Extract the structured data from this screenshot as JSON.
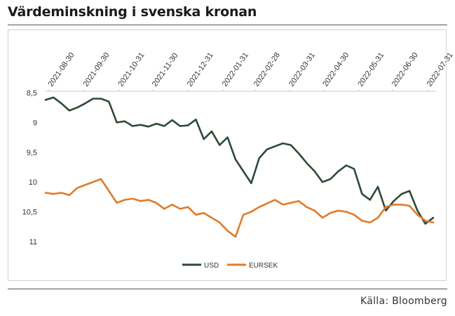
{
  "title": "Värdeminskning i svenska kronan",
  "source": "Källa: Bloomberg",
  "colors": {
    "usd": "#2e4a35",
    "eursek": "#e07b2a"
  },
  "chart_data": {
    "type": "line",
    "y_inverted": true,
    "ylim": [
      8.5,
      11
    ],
    "y_ticks": [
      8.5,
      9,
      9.5,
      10,
      10.5,
      11
    ],
    "y_tick_labels": [
      "8,5",
      "9",
      "9,5",
      "10",
      "10,5",
      "11"
    ],
    "x_tick_labels": [
      "2021-08-30",
      "2021-09-30",
      "2021-10-31",
      "2021-11-30",
      "2021-12-31",
      "2022-01-31",
      "2022-02-28",
      "2022-03-31",
      "2022-04-30",
      "2022-05-31",
      "2022-06-30",
      "2022-07-31"
    ],
    "x": [
      "2021-08-27",
      "2021-09-03",
      "2021-09-10",
      "2021-09-17",
      "2021-09-24",
      "2021-10-01",
      "2021-10-08",
      "2021-10-15",
      "2021-10-22",
      "2021-10-29",
      "2021-11-05",
      "2021-11-12",
      "2021-11-19",
      "2021-11-26",
      "2021-12-03",
      "2021-12-10",
      "2021-12-17",
      "2021-12-24",
      "2021-12-31",
      "2022-01-07",
      "2022-01-14",
      "2022-01-21",
      "2022-01-28",
      "2022-02-04",
      "2022-02-11",
      "2022-02-18",
      "2022-02-25",
      "2022-03-04",
      "2022-03-11",
      "2022-03-18",
      "2022-03-25",
      "2022-04-01",
      "2022-04-08",
      "2022-04-15",
      "2022-04-22",
      "2022-04-29",
      "2022-05-06",
      "2022-05-13",
      "2022-05-20",
      "2022-05-27",
      "2022-06-03",
      "2022-06-10",
      "2022-06-17",
      "2022-06-24",
      "2022-07-01",
      "2022-07-08",
      "2022-07-15",
      "2022-07-22",
      "2022-07-29",
      "2022-08-05"
    ],
    "series": [
      {
        "name": "USD",
        "values": [
          8.62,
          8.58,
          8.68,
          8.8,
          8.75,
          8.68,
          8.6,
          8.6,
          8.65,
          9.0,
          8.98,
          9.06,
          9.04,
          9.07,
          9.02,
          9.06,
          8.96,
          9.06,
          9.05,
          8.95,
          9.28,
          9.15,
          9.38,
          9.25,
          9.62,
          9.82,
          10.02,
          9.6,
          9.45,
          9.4,
          9.35,
          9.38,
          9.52,
          9.68,
          9.82,
          10.0,
          9.95,
          9.82,
          9.72,
          9.78,
          10.2,
          10.3,
          10.08,
          10.48,
          10.32,
          10.2,
          10.15,
          10.48,
          10.7,
          10.6
        ]
      },
      {
        "name": "EURSEK",
        "values": [
          10.18,
          10.2,
          10.18,
          10.22,
          10.1,
          10.05,
          10.0,
          9.95,
          10.15,
          10.35,
          10.3,
          10.28,
          10.32,
          10.3,
          10.35,
          10.45,
          10.38,
          10.45,
          10.42,
          10.55,
          10.52,
          10.6,
          10.68,
          10.82,
          10.92,
          10.55,
          10.5,
          10.42,
          10.36,
          10.3,
          10.38,
          10.35,
          10.32,
          10.42,
          10.48,
          10.6,
          10.52,
          10.48,
          10.5,
          10.55,
          10.65,
          10.68,
          10.6,
          10.42,
          10.38,
          10.38,
          10.4,
          10.55,
          10.65,
          10.68
        ]
      }
    ],
    "legend": {
      "position": "bottom",
      "items": [
        "USD",
        "EURSEK"
      ]
    },
    "grid": false
  }
}
